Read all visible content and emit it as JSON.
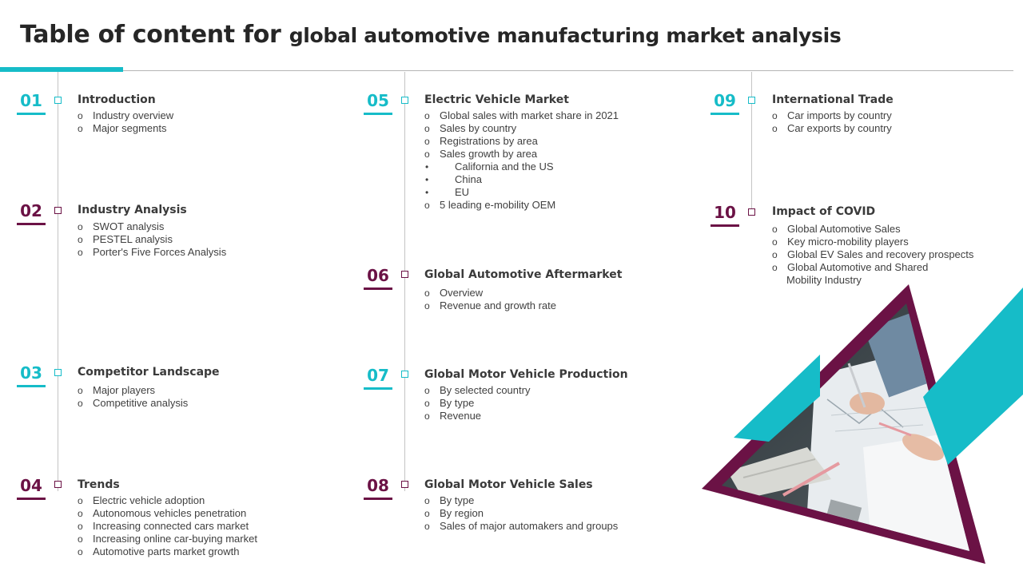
{
  "title": {
    "part1": "Table of content for ",
    "part2": "global automotive manufacturing market analysis"
  },
  "colors": {
    "teal": "#16bcc8",
    "plum": "#6b1245"
  },
  "sections": [
    {
      "number": "01",
      "heading": "Introduction",
      "items": [
        "Industry overview",
        "Major segments"
      ]
    },
    {
      "number": "02",
      "heading": "Industry Analysis",
      "items": [
        "SWOT analysis",
        "PESTEL analysis",
        "Porter's Five Forces Analysis"
      ]
    },
    {
      "number": "03",
      "heading": "Competitor Landscape",
      "items": [
        "Major players",
        "Competitive  analysis"
      ]
    },
    {
      "number": "04",
      "heading": "Trends",
      "items": [
        "Electric vehicle  adoption",
        "Autonomous vehicles  penetration",
        "Increasing  connected cars market",
        "Increasing  online car-buying market",
        "Automotive  parts market growth"
      ]
    },
    {
      "number": "05",
      "heading": "Electric Vehicle Market",
      "items": [
        "Global sales with market share in 2021",
        "Sales by country",
        "Registrations  by area",
        "Sales growth  by area"
      ],
      "subitems": [
        "California  and the US",
        "China",
        "EU"
      ],
      "last_item": "5 leading e-mobility OEM"
    },
    {
      "number": "06",
      "heading": "Global Automotive Aftermarket",
      "items": [
        "Overview",
        "Revenue  and growth rate"
      ]
    },
    {
      "number": "07",
      "heading": "Global Motor Vehicle Production",
      "items": [
        "By selected country",
        "By type",
        "Revenue"
      ]
    },
    {
      "number": "08",
      "heading": "Global Motor Vehicle Sales",
      "items": [
        "By type",
        "By region",
        "Sales of major automakers and groups"
      ]
    },
    {
      "number": "09",
      "heading": "International Trade",
      "items": [
        "Car imports by country",
        "Car exports by country"
      ]
    },
    {
      "number": "10",
      "heading": "Impact of COVID",
      "items": [
        "Global Automotive  Sales",
        "Key micro-mobility  players",
        "Global EV Sales and recovery  prospects",
        "Global Automotive  and Shared"
      ],
      "continuation": "Mobility Industry"
    }
  ]
}
